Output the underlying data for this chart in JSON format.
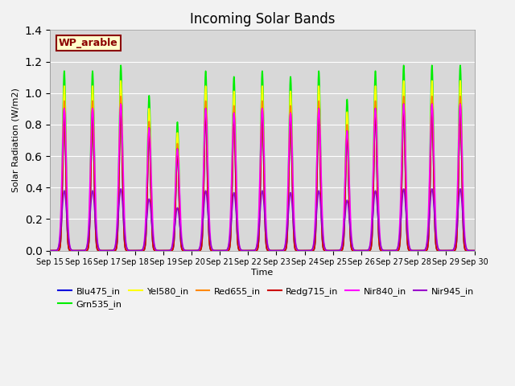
{
  "title": "Incoming Solar Bands",
  "xlabel": "Time",
  "ylabel": "Solar Radiation (W/m2)",
  "annotation": "WP_arable",
  "ylim": [
    0,
    1.4
  ],
  "xtick_labels": [
    "Sep 15",
    "Sep 16",
    "Sep 17",
    "Sep 18",
    "Sep 19",
    "Sep 20",
    "Sep 21",
    "Sep 22",
    "Sep 23",
    "Sep 24",
    "Sep 25",
    "Sep 26",
    "Sep 27",
    "Sep 28",
    "Sep 29",
    "Sep 30"
  ],
  "series": [
    {
      "name": "Blu475_in",
      "color": "#0000dd",
      "lw": 1.2,
      "peak_scale": 0.93,
      "sigma": 0.055
    },
    {
      "name": "Grn535_in",
      "color": "#00ee00",
      "lw": 1.2,
      "peak_scale": 1.2,
      "sigma": 0.06
    },
    {
      "name": "Yel580_in",
      "color": "#ffff00",
      "lw": 1.2,
      "peak_scale": 1.1,
      "sigma": 0.058
    },
    {
      "name": "Red655_in",
      "color": "#ff8800",
      "lw": 1.2,
      "peak_scale": 1.0,
      "sigma": 0.056
    },
    {
      "name": "Redg715_in",
      "color": "#cc0000",
      "lw": 1.2,
      "peak_scale": 0.95,
      "sigma": 0.055
    },
    {
      "name": "Nir840_in",
      "color": "#ff00ff",
      "lw": 1.2,
      "peak_scale": 0.95,
      "sigma": 0.075
    },
    {
      "name": "Nir945_in",
      "color": "#9900cc",
      "lw": 1.2,
      "peak_scale": 0.4,
      "sigma": 0.085
    }
  ],
  "day_peaks": [
    0.95,
    0.95,
    0.98,
    0.82,
    0.68,
    0.95,
    0.92,
    0.95,
    0.92,
    0.95,
    0.8,
    0.95,
    0.98,
    0.98,
    0.98
  ],
  "n_days": 15,
  "pts_per_day": 300,
  "plot_bg": "#d8d8d8",
  "fig_bg": "#f2f2f2",
  "grid_color": "white",
  "title_fontsize": 12,
  "legend_fontsize": 8,
  "annotation_fontsize": 9
}
